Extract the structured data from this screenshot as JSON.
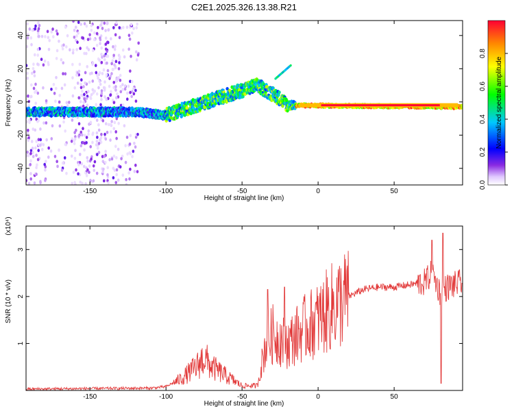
{
  "title": "C2E1.2025.326.13.38.R21",
  "chart_data": [
    {
      "type": "heatmap",
      "id": "spectrogram",
      "xlabel": "Height of straight line (km)",
      "ylabel": "Frequency (Hz)",
      "xlim": [
        -192,
        95
      ],
      "ylim": [
        -50,
        49
      ],
      "xticks": [
        -150,
        -100,
        -50,
        0,
        50
      ],
      "yticks": [
        -40,
        -20,
        0,
        20,
        40
      ],
      "colorbar": {
        "label": "Normalized spectral amplitude",
        "range": [
          0,
          1
        ],
        "ticks": [
          0.0,
          0.2,
          0.4,
          0.6,
          0.8
        ],
        "tick_labels": [
          "0.0",
          "0.2",
          "0.4",
          "0.6",
          "0.8"
        ]
      },
      "features": [
        {
          "name": "main-band",
          "x_from": -190,
          "x_to": 95,
          "center_hz": [
            [
              -190,
              -6
            ],
            [
              -120,
              -6
            ],
            [
              -100,
              -8
            ],
            [
              -80,
              -2
            ],
            [
              -40,
              10
            ],
            [
              -25,
              2
            ],
            [
              -20,
              -2
            ],
            [
              95,
              -3
            ]
          ]
        },
        {
          "name": "strong-carrier",
          "x_from": -15,
          "x_to": 95,
          "center_hz": -2
        },
        {
          "name": "chirp",
          "x_from": -28,
          "x_to": -18,
          "hz_from": 14,
          "hz_to": 22
        }
      ]
    },
    {
      "type": "line",
      "id": "snr",
      "xlabel": "Height of straight line (km)",
      "ylabel": "SNR (10 * v/v)",
      "scale_label": "(x10⁴)",
      "xlim": [
        -192,
        95
      ],
      "ylim": [
        0,
        3.5
      ],
      "xticks": [
        -150,
        -100,
        -50,
        0,
        50
      ],
      "yticks": [
        1,
        2,
        3
      ],
      "series": [
        {
          "name": "SNR",
          "color": "#e23b3b",
          "envelope": [
            [
              -192,
              0.03
            ],
            [
              -150,
              0.04
            ],
            [
              -110,
              0.05
            ],
            [
              -100,
              0.08
            ],
            [
              -90,
              0.25
            ],
            [
              -80,
              0.5
            ],
            [
              -75,
              0.7
            ],
            [
              -70,
              0.5
            ],
            [
              -60,
              0.3
            ],
            [
              -50,
              0.1
            ],
            [
              -40,
              0.1
            ],
            [
              -35,
              0.9
            ],
            [
              -30,
              1.2
            ],
            [
              -25,
              1.1
            ],
            [
              -20,
              1.0
            ],
            [
              -10,
              1.3
            ],
            [
              0,
              1.5
            ],
            [
              10,
              1.8
            ],
            [
              20,
              2.0
            ],
            [
              30,
              2.15
            ],
            [
              40,
              2.2
            ],
            [
              50,
              2.2
            ],
            [
              60,
              2.25
            ],
            [
              70,
              2.3
            ],
            [
              75,
              2.5
            ],
            [
              80,
              2.1
            ],
            [
              85,
              2.2
            ],
            [
              95,
              2.3
            ]
          ],
          "spikes": [
            [
              -33,
              2.15
            ],
            [
              -22,
              2.2
            ],
            [
              75,
              3.2
            ],
            [
              82,
              3.35
            ],
            [
              81,
              0.15
            ]
          ]
        }
      ]
    }
  ]
}
